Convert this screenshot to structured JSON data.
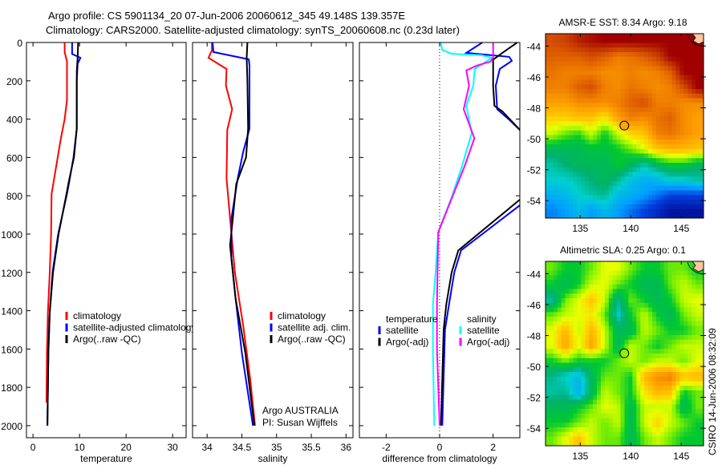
{
  "title": {
    "line1": "Argo profile: CS 5901134_20 07-Jun-2006 20060612_345 49.148S 139.357E",
    "line2": "Climatology: CARS2000. Satellite-adjusted climatology: synTS_20060608.nc (0.23d later)"
  },
  "annotation": {
    "line1": "Argo AUSTRALIA",
    "line2": "PI: Susan Wijffels"
  },
  "footer": "CSIRO 14-Jun-2006 08:32:09",
  "chart_data": [
    {
      "type": "line",
      "xlabel": "temperature",
      "ylabel": "",
      "xlim": [
        -1.4,
        32.9
      ],
      "ylim": [
        2063,
        0
      ],
      "xticks": [
        "0",
        "10",
        "20",
        "30"
      ],
      "yticks": [
        "0",
        "200",
        "400",
        "600",
        "800",
        "1000",
        "1200",
        "1400",
        "1600",
        "1800",
        "2000"
      ],
      "legend_header": [],
      "series": [
        {
          "name": "climatology",
          "color": "#ff0000",
          "points": [
            [
              6.8,
              0
            ],
            [
              6.8,
              50
            ],
            [
              7.3,
              100
            ],
            [
              7.3,
              300
            ],
            [
              6.8,
              400
            ],
            [
              6.0,
              500
            ],
            [
              5.3,
              600
            ],
            [
              4.0,
              790
            ],
            [
              3.9,
              1000
            ],
            [
              3.6,
              1200
            ],
            [
              3.2,
              1410
            ],
            [
              3.0,
              1620
            ],
            [
              2.9,
              1880
            ]
          ]
        },
        {
          "name": "satellite-adjusted climatology",
          "color": "#0000ff",
          "points": [
            [
              8.4,
              0
            ],
            [
              8.4,
              60
            ],
            [
              10.2,
              80
            ],
            [
              9.6,
              110
            ],
            [
              9.4,
              200
            ],
            [
              9.4,
              450
            ],
            [
              8.7,
              600
            ],
            [
              7.8,
              725
            ],
            [
              7.3,
              790
            ],
            [
              5.4,
              1000
            ],
            [
              4.2,
              1200
            ],
            [
              3.6,
              1410
            ],
            [
              3.3,
              1620
            ],
            [
              3.1,
              2000
            ]
          ]
        },
        {
          "name": "Argo(..raw -QC)",
          "color": "#000000",
          "points": [
            [
              9.7,
              0
            ],
            [
              9.6,
              80
            ],
            [
              9.4,
              150
            ],
            [
              9.4,
              450
            ],
            [
              8.8,
              600
            ],
            [
              7.7,
              725
            ],
            [
              7.2,
              790
            ],
            [
              5.5,
              1000
            ],
            [
              4.3,
              1200
            ],
            [
              3.6,
              1410
            ],
            [
              3.3,
              1620
            ],
            [
              3.1,
              2000
            ]
          ]
        }
      ]
    },
    {
      "type": "line",
      "xlabel": "salinity",
      "ylabel": "",
      "xlim": [
        33.79,
        36.1
      ],
      "ylim": [
        2063,
        0
      ],
      "xticks": [
        "34",
        "34.5",
        "35",
        "35.5",
        "36"
      ],
      "yticks": [],
      "legend_header": [],
      "series": [
        {
          "name": "climatology",
          "color": "#ff0000",
          "points": [
            [
              34.07,
              0
            ],
            [
              34.07,
              40
            ],
            [
              34.02,
              80
            ],
            [
              34.28,
              138
            ],
            [
              34.27,
              225
            ],
            [
              34.36,
              348
            ],
            [
              34.29,
              456
            ],
            [
              34.28,
              710
            ],
            [
              34.33,
              918
            ],
            [
              34.4,
              1200
            ],
            [
              34.52,
              1480
            ],
            [
              34.62,
              1757
            ],
            [
              34.69,
              2000
            ]
          ]
        },
        {
          "name": "satellite adj. clim.",
          "color": "#0000ff",
          "points": [
            [
              34.08,
              0
            ],
            [
              34.09,
              50
            ],
            [
              34.6,
              88
            ],
            [
              34.61,
              120
            ],
            [
              34.61,
              450
            ],
            [
              34.52,
              570
            ],
            [
              34.44,
              710
            ],
            [
              34.35,
              918
            ],
            [
              34.35,
              1128
            ],
            [
              34.41,
              1338
            ],
            [
              34.5,
              1620
            ],
            [
              34.66,
              2000
            ]
          ]
        },
        {
          "name": "Argo(..raw -QC)",
          "color": "#000000",
          "points": [
            [
              34.58,
              0
            ],
            [
              34.57,
              80
            ],
            [
              34.58,
              200
            ],
            [
              34.59,
              450
            ],
            [
              34.56,
              600
            ],
            [
              34.42,
              738
            ],
            [
              34.37,
              918
            ],
            [
              34.33,
              1060
            ],
            [
              34.41,
              1338
            ],
            [
              34.55,
              1620
            ],
            [
              34.68,
              2000
            ]
          ]
        }
      ]
    },
    {
      "type": "line",
      "xlabel": "difference from climatology",
      "ylabel": "",
      "xlim": [
        -3,
        3
      ],
      "ylim": [
        2063,
        0
      ],
      "xticks": [
        "-2",
        "0",
        "2"
      ],
      "yticks": [],
      "legend_header": [
        "temperature",
        "salinity"
      ],
      "series": [
        {
          "name": "satellite",
          "group": "temperature",
          "color": "#0000ff",
          "points": [
            [
              1.6,
              0
            ],
            [
              1.0,
              54
            ],
            [
              2.6,
              75
            ],
            [
              2.7,
              96
            ],
            [
              2.25,
              138
            ],
            [
              2.1,
              225
            ],
            [
              2.15,
              348
            ],
            [
              2.6,
              403
            ],
            [
              3.0,
              456
            ],
            [
              3.6,
              600
            ],
            [
              3.6,
              780
            ],
            [
              3.0,
              850
            ],
            [
              0.8,
              1085
            ],
            [
              0.55,
              1200
            ],
            [
              0.35,
              1367
            ],
            [
              0.2,
              1500
            ],
            [
              0.1,
              2000
            ]
          ]
        },
        {
          "name": "Argo(-adj)",
          "group": "temperature",
          "color": "#000000",
          "points": [
            [
              2.9,
              0
            ],
            [
              2.35,
              54
            ],
            [
              2.0,
              90
            ],
            [
              2.0,
              225
            ],
            [
              2.05,
              330
            ],
            [
              2.35,
              360
            ],
            [
              3.0,
              456
            ],
            [
              3.6,
              600
            ],
            [
              3.6,
              760
            ],
            [
              3.0,
              820
            ],
            [
              0.7,
              1085
            ],
            [
              0.45,
              1200
            ],
            [
              0.25,
              1367
            ],
            [
              0.15,
              1500
            ],
            [
              0.05,
              2000
            ]
          ]
        },
        {
          "name": "satellite",
          "group": "salinity",
          "color": "#00ffff",
          "points": [
            [
              0.04,
              0
            ],
            [
              0.1,
              38
            ],
            [
              0.45,
              59
            ],
            [
              1.56,
              66
            ],
            [
              1.96,
              80
            ],
            [
              1.31,
              138
            ],
            [
              1.26,
              225
            ],
            [
              1.0,
              331
            ],
            [
              1.2,
              472
            ],
            [
              0.85,
              640
            ],
            [
              0.45,
              808
            ],
            [
              -0.05,
              990
            ],
            [
              -0.15,
              1200
            ],
            [
              -0.25,
              1367
            ],
            [
              -0.25,
              1600
            ],
            [
              -0.2,
              2000
            ]
          ]
        },
        {
          "name": "Argo(-adj)",
          "group": "salinity",
          "color": "#ff00ff",
          "points": [
            [
              2.0,
              0
            ],
            [
              2.0,
              80
            ],
            [
              1.9,
              100
            ],
            [
              1.4,
              120
            ],
            [
              1.0,
              145
            ],
            [
              1.1,
              225
            ],
            [
              0.9,
              348
            ],
            [
              1.3,
              500
            ],
            [
              0.95,
              640
            ],
            [
              0.55,
              780
            ],
            [
              -0.05,
              990
            ],
            [
              -0.1,
              1367
            ],
            [
              -0.1,
              1600
            ],
            [
              0.0,
              2000
            ]
          ]
        }
      ]
    },
    {
      "type": "heatmap",
      "title": "AMSR-E SST: 8.34 Argo: 9.18",
      "xlim": [
        131.56,
        147.2
      ],
      "ylim": [
        -55.13,
        -43.2
      ],
      "xticks": [
        "135",
        "140",
        "145"
      ],
      "yticks": [
        "-44",
        "-46",
        "-48",
        "-50",
        "-52",
        "-54"
      ],
      "argo": {
        "lon": 139.357,
        "lat": -49.148,
        "level": 0.74
      },
      "grid": [
        [
          0.88,
          0.9,
          0.95,
          0.98,
          1,
          1,
          1,
          1,
          1,
          1,
          1,
          1
        ],
        [
          0.85,
          0.85,
          0.85,
          0.88,
          0.85,
          0.8,
          0.82,
          0.85,
          0.9,
          1,
          1,
          1
        ],
        [
          0.82,
          0.8,
          0.8,
          0.8,
          0.78,
          0.78,
          0.8,
          0.78,
          0.8,
          0.85,
          1,
          1
        ],
        [
          0.8,
          0.8,
          0.85,
          0.88,
          0.8,
          0.78,
          0.82,
          0.8,
          0.78,
          0.8,
          0.88,
          1
        ],
        [
          0.75,
          0.75,
          0.78,
          0.78,
          0.78,
          0.8,
          0.85,
          0.88,
          0.8,
          0.8,
          0.78,
          0.78
        ],
        [
          0.68,
          0.68,
          0.7,
          0.7,
          0.65,
          0.75,
          0.8,
          0.78,
          0.82,
          0.85,
          0.78,
          0.75
        ],
        [
          0.6,
          0.55,
          0.52,
          0.6,
          0.5,
          0.6,
          0.68,
          0.7,
          0.8,
          0.82,
          0.78,
          0.75
        ],
        [
          0.45,
          0.45,
          0.45,
          0.48,
          0.48,
          0.5,
          0.55,
          0.62,
          0.7,
          0.72,
          0.72,
          0.7
        ],
        [
          0.38,
          0.42,
          0.45,
          0.45,
          0.45,
          0.5,
          0.45,
          0.38,
          0.45,
          0.5,
          0.5,
          0.45
        ],
        [
          0.35,
          0.35,
          0.38,
          0.42,
          0.45,
          0.4,
          0.32,
          0.28,
          0.3,
          0.35,
          0.35,
          0.38
        ],
        [
          0.28,
          0.3,
          0.35,
          0.38,
          0.4,
          0.3,
          0.28,
          0.25,
          0.2,
          0.15,
          0.15,
          0.15
        ],
        [
          0.22,
          0.25,
          0.3,
          0.25,
          0.3,
          0.25,
          0.2,
          0.15,
          0.1,
          0.05,
          0.05,
          0.05
        ]
      ]
    },
    {
      "type": "heatmap",
      "title": "Altimetric SLA: 0.25 Argo: 0.1",
      "xlim": [
        131.56,
        147.2
      ],
      "ylim": [
        -55.13,
        -43.2
      ],
      "xticks": [
        "135",
        "140",
        "145"
      ],
      "yticks": [
        "-44",
        "-46",
        "-48",
        "-50",
        "-52",
        "-54"
      ],
      "argo": {
        "lon": 139.357,
        "lat": -49.148,
        "level": 0.57
      },
      "grid": [
        [
          0.55,
          0.5,
          0.5,
          0.55,
          0.62,
          0.62,
          0.55,
          0.5,
          0.5,
          0.55,
          0.55,
          0.5
        ],
        [
          0.5,
          0.45,
          0.5,
          0.6,
          0.62,
          0.55,
          0.5,
          0.45,
          0.45,
          0.55,
          0.6,
          0.55
        ],
        [
          0.38,
          0.55,
          0.62,
          0.7,
          0.6,
          0.4,
          0.55,
          0.5,
          0.45,
          0.5,
          0.6,
          0.62
        ],
        [
          0.55,
          0.6,
          0.62,
          0.65,
          0.55,
          0.35,
          0.5,
          0.6,
          0.5,
          0.45,
          0.55,
          0.6
        ],
        [
          0.62,
          0.72,
          0.6,
          0.72,
          0.6,
          0.45,
          0.45,
          0.6,
          0.55,
          0.5,
          0.5,
          0.55
        ],
        [
          0.62,
          0.75,
          0.62,
          0.75,
          0.6,
          0.45,
          0.6,
          0.55,
          0.5,
          0.55,
          0.6,
          0.6
        ],
        [
          0.5,
          0.55,
          0.5,
          0.5,
          0.5,
          0.55,
          0.6,
          0.55,
          0.6,
          0.6,
          0.55,
          0.62
        ],
        [
          0.4,
          0.35,
          0.3,
          0.45,
          0.55,
          0.55,
          0.5,
          0.72,
          0.78,
          0.8,
          0.7,
          0.72
        ],
        [
          0.38,
          0.4,
          0.28,
          0.45,
          0.6,
          0.55,
          0.5,
          0.65,
          0.72,
          0.7,
          0.5,
          0.55
        ],
        [
          0.45,
          0.45,
          0.5,
          0.55,
          0.62,
          0.6,
          0.45,
          0.6,
          0.6,
          0.6,
          0.45,
          0.55
        ],
        [
          0.5,
          0.5,
          0.55,
          0.6,
          0.55,
          0.6,
          0.45,
          0.6,
          0.68,
          0.6,
          0.55,
          0.5
        ],
        [
          0.55,
          0.62,
          0.7,
          0.6,
          0.55,
          0.55,
          0.45,
          0.55,
          0.6,
          0.55,
          0.5,
          0.5
        ]
      ]
    }
  ]
}
